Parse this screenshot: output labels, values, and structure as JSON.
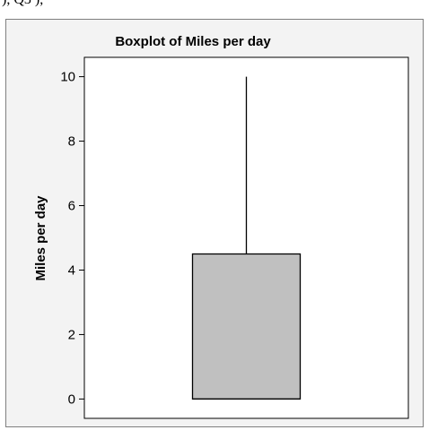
{
  "page": {
    "top_fragment": "), Q3 ), "
  },
  "chart_data": {
    "type": "box",
    "title": "Boxplot of Miles per day",
    "xlabel": "",
    "ylabel": "Miles per day",
    "ylim": [
      -0.6,
      10.6
    ],
    "yticks": [
      0,
      2,
      4,
      6,
      8,
      10
    ],
    "ytick_labels": [
      "0",
      "2",
      "4",
      "6",
      "8",
      "10"
    ],
    "grid": false,
    "series": [
      {
        "whisker_low": 0,
        "q1": 0,
        "median": 0,
        "q3": 4.5,
        "whisker_high": 10
      }
    ],
    "colors": {
      "box_fill": "#c0c0c0",
      "box_stroke": "#000000",
      "panel_background": "#f3f3f3",
      "plot_background": "#ffffff",
      "panel_border": "#7f7f7f"
    }
  }
}
